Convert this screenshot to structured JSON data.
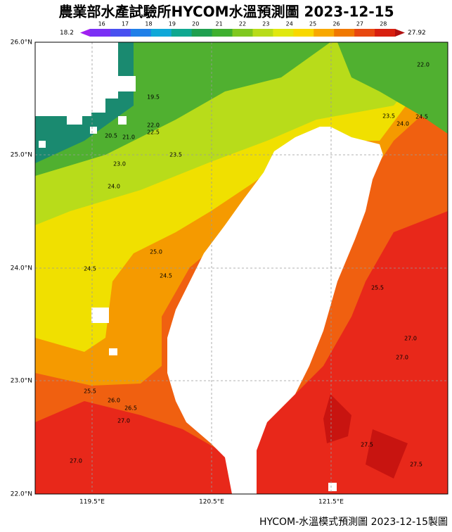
{
  "header": {
    "title": "農業部水產試驗所HYCOM水溫預測圖 2023-12-15"
  },
  "colorbar": {
    "min_label": "18.2",
    "max_label": "27.92",
    "labels": [
      "16",
      "17",
      "18",
      "19",
      "20",
      "21",
      "22",
      "23",
      "24",
      "25",
      "26",
      "27",
      "28"
    ],
    "colors": [
      "#a020f0",
      "#7a30f5",
      "#4850f0",
      "#2080e8",
      "#10a8d8",
      "#10a890",
      "#20a050",
      "#40b030",
      "#80c820",
      "#b8dc1a",
      "#e0e810",
      "#f8d800",
      "#f8a800",
      "#f07800",
      "#e84810",
      "#d82010",
      "#b01010"
    ]
  },
  "map": {
    "lat_labels": [
      "26.0°N",
      "25.0°N",
      "24.0°N",
      "23.0°N",
      "22.0°N"
    ],
    "lon_labels": [
      "119.5°E",
      "120.5°E",
      "121.5°E"
    ],
    "contour_labels": [
      "19.5",
      "20.5",
      "21.0",
      "22.0",
      "22.5",
      "23.0",
      "23.5",
      "24.0",
      "24.5",
      "25.0",
      "24.5",
      "25.5",
      "26.0",
      "26.5",
      "27.0",
      "27.0",
      "25.5",
      "27.0",
      "27.0",
      "27.5",
      "27.5",
      "22.0",
      "23.5",
      "24.0",
      "24.5"
    ]
  },
  "footer": {
    "text": "HYCOM-水溫模式預測圖 2023-12-15製圖"
  }
}
